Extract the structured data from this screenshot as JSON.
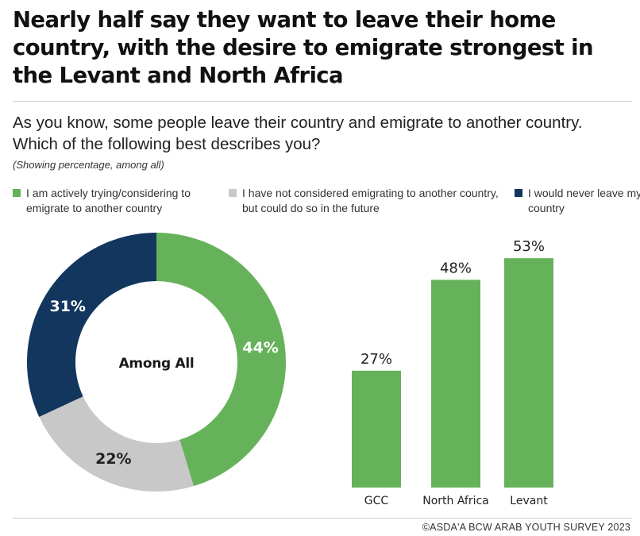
{
  "title": "Nearly half say they want to leave their home country, with the desire to emigrate strongest in the Levant and North Africa",
  "question": "As you know, some people leave their country and emigrate to another country. Which of the following best describes you?",
  "subtitle": "(Showing percentage, among all)",
  "footer": "©ASDA'A BCW ARAB YOUTH SURVEY 2023",
  "colors": {
    "green": "#66b25a",
    "grey": "#c8c8c8",
    "navy": "#12365e"
  },
  "legend": [
    {
      "label": "I am actively trying/considering to emigrate to another country",
      "color": "#66b25a"
    },
    {
      "label": "I have not considered emigrating to another country, but could do so in the future",
      "color": "#c8c8c8"
    },
    {
      "label": "I would never leave my country",
      "color": "#12365e"
    }
  ],
  "chart_data": [
    {
      "type": "pie",
      "donut": true,
      "center_label": "Among All",
      "slices": [
        {
          "name": "I am actively trying/considering to emigrate to another country",
          "value": 44,
          "label": "44%",
          "color": "#66b25a"
        },
        {
          "name": "I have not considered emigrating to another country, but could do so in the future",
          "value": 22,
          "label": "22%",
          "color": "#c8c8c8"
        },
        {
          "name": "I would never leave my country",
          "value": 31,
          "label": "31%",
          "color": "#12365e"
        }
      ]
    },
    {
      "type": "bar",
      "categories": [
        "GCC",
        "North Africa",
        "Levant"
      ],
      "values": [
        27,
        48,
        53
      ],
      "data_labels": [
        "27%",
        "48%",
        "53%"
      ],
      "color": "#66b25a",
      "ylim": [
        0,
        100
      ],
      "grid": false
    }
  ]
}
